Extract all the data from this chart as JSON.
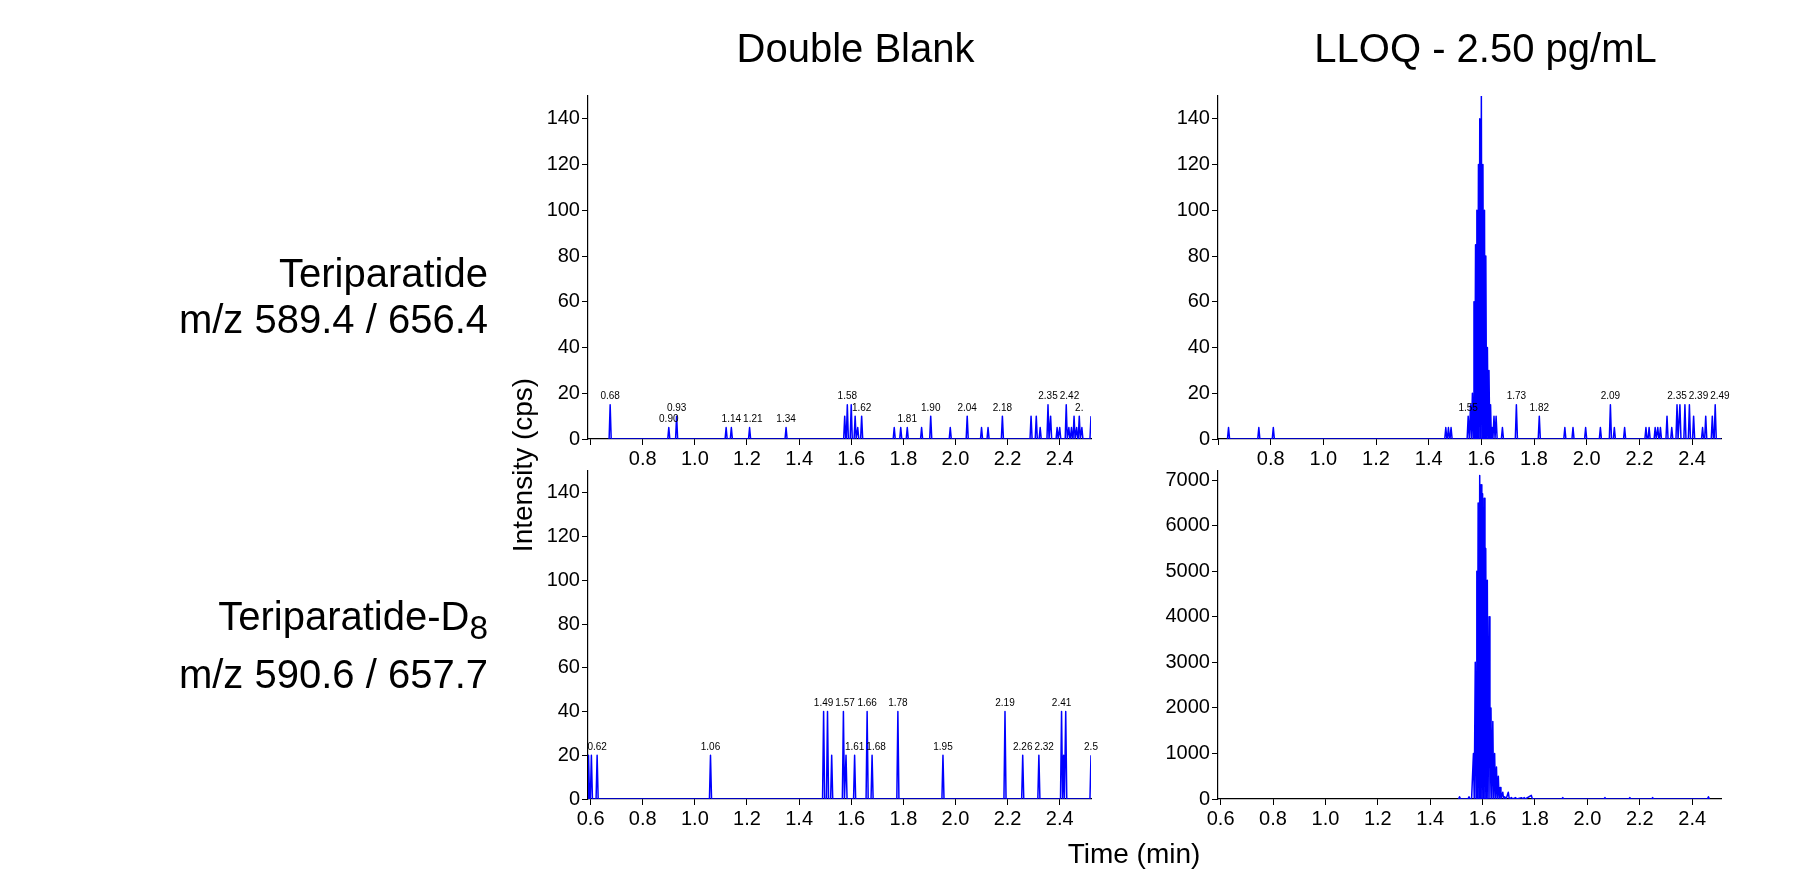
{
  "chart_data": [
    {
      "type": "line",
      "title": "Double Blank",
      "ylabel": "Intensity (cps)",
      "xlim": [
        0.59,
        2.52
      ],
      "ylim": [
        0,
        150
      ],
      "xticks": [
        {
          "value": 0.6,
          "label": null
        },
        0.8,
        {
          "value": 1,
          "label": "1.0"
        },
        1.2,
        1.4,
        1.6,
        1.8,
        {
          "value": 2,
          "label": "2.0"
        },
        2.2,
        2.4
      ],
      "yticks": [
        0,
        20,
        40,
        60,
        80,
        100,
        120,
        140
      ],
      "grid": false,
      "series": [
        {
          "color": "#0000ff",
          "x": [
            0.671,
            0.675,
            0.679,
            0.896,
            0.9,
            0.904,
            0.926,
            0.93,
            0.934,
            1.116,
            1.12,
            1.124,
            1.136,
            1.14,
            1.144,
            1.206,
            1.21,
            1.214,
            1.346,
            1.35,
            1.354,
            1.571,
            1.575,
            1.579,
            1.581,
            1.585,
            1.589,
            1.596,
            1.6,
            1.604,
            1.611,
            1.615,
            1.619,
            1.621,
            1.625,
            1.629,
            1.636,
            1.64,
            1.644,
            1.761,
            1.765,
            1.769,
            1.786,
            1.79,
            1.794,
            1.811,
            1.815,
            1.819,
            1.866,
            1.87,
            1.874,
            1.901,
            1.905,
            1.909,
            1.976,
            1.98,
            1.984,
            2.041,
            2.045,
            2.049,
            2.096,
            2.1,
            2.104,
            2.121,
            2.125,
            2.129,
            2.176,
            2.18,
            2.184,
            2.286,
            2.29,
            2.294,
            2.306,
            2.31,
            2.314,
            2.321,
            2.325,
            2.329,
            2.351,
            2.355,
            2.359,
            2.361,
            2.365,
            2.369,
            2.386,
            2.39,
            2.394,
            2.396,
            2.4,
            2.404,
            2.421,
            2.425,
            2.429,
            2.431,
            2.435,
            2.439,
            2.441,
            2.445,
            2.449,
            2.451,
            2.455,
            2.459,
            2.461,
            2.465,
            2.469,
            2.471,
            2.475,
            2.479,
            2.481,
            2.485,
            2.489,
            2.516,
            2.52
          ],
          "values": [
            0,
            15,
            0,
            0,
            5,
            0,
            0,
            10,
            0,
            0,
            5,
            0,
            0,
            5,
            0,
            0,
            5,
            0,
            0,
            5,
            0,
            0,
            10,
            0,
            0,
            15,
            0,
            0,
            15,
            0,
            0,
            10,
            0,
            0,
            5,
            0,
            0,
            10,
            0,
            0,
            5,
            0,
            0,
            5,
            0,
            0,
            5,
            0,
            0,
            5,
            0,
            0,
            10,
            0,
            0,
            5,
            0,
            0,
            10,
            0,
            0,
            5,
            0,
            0,
            5,
            0,
            0,
            10,
            0,
            0,
            10,
            0,
            0,
            10,
            0,
            0,
            5,
            0,
            0,
            15,
            0,
            0,
            10,
            0,
            0,
            5,
            0,
            0,
            5,
            0,
            0,
            15,
            0,
            0,
            5,
            0,
            0,
            5,
            0,
            0,
            10,
            0,
            0,
            5,
            0,
            0,
            10,
            0,
            0,
            5,
            0,
            0,
            10
          ]
        }
      ],
      "annotations": [
        "Teriparatide\nm/z 589.4 / 656.4",
        {
          "text": "0.68",
          "x": 0.675,
          "y": 15
        },
        {
          "text": "0.90",
          "x": 0.9,
          "y": 5
        },
        {
          "text": "0.93",
          "x": 0.93,
          "y": 10
        },
        {
          "text": "1.14",
          "x": 1.14,
          "y": 5
        },
        {
          "text": "1.21",
          "x": 1.21,
          "y": 5
        },
        {
          "text": "1.34",
          "x": 1.35,
          "y": 5
        },
        {
          "text": "1.58",
          "x": 1.585,
          "y": 15
        },
        {
          "text": "1.62",
          "x": 1.64,
          "y": 10
        },
        {
          "text": "1.81",
          "x": 1.815,
          "y": 5
        },
        {
          "text": "1.90",
          "x": 1.905,
          "y": 10
        },
        {
          "text": "2.04",
          "x": 2.045,
          "y": 10
        },
        {
          "text": "2.18",
          "x": 2.18,
          "y": 10
        },
        {
          "text": "2.35",
          "x": 2.355,
          "y": 15
        },
        {
          "text": "2.42",
          "x": 2.425,
          "y": 15
        },
        {
          "text": "2.",
          "x": 2.475,
          "y": 10
        }
      ]
    },
    {
      "type": "line",
      "title": "LLOQ - 2.50 pg/mL",
      "xlim": [
        0.6,
        2.51
      ],
      "ylim": [
        0,
        150
      ],
      "xticks": [
        {
          "value": 0.6,
          "label": null
        },
        0.8,
        {
          "value": 1,
          "label": "1.0"
        },
        1.2,
        1.4,
        1.6,
        1.8,
        {
          "value": 2,
          "label": "2.0"
        },
        2.2,
        2.4
      ],
      "yticks": [
        0,
        20,
        40,
        60,
        80,
        100,
        120,
        140
      ],
      "grid": false,
      "series": [
        {
          "color": "#0000ff",
          "x": [
            0.636,
            0.64,
            0.644,
            0.751,
            0.755,
            0.759,
            0.806,
            0.81,
            0.814,
            1.461,
            1.465,
            1.469,
            1.471,
            1.475,
            1.479,
            1.481,
            1.485,
            1.489,
            1.546,
            1.55,
            1.554,
            1.559,
            1.562,
            1.566,
            1.569,
            1.572,
            1.575,
            1.578,
            1.58,
            1.583,
            1.586,
            1.589,
            1.591,
            1.594,
            1.597,
            1.6,
            1.603,
            1.606,
            1.609,
            1.612,
            1.614,
            1.617,
            1.62,
            1.623,
            1.626,
            1.629,
            1.632,
            1.635,
            1.638,
            1.641,
            1.644,
            1.648,
            1.652,
            1.656,
            1.66,
            1.676,
            1.68,
            1.684,
            1.729,
            1.733,
            1.737,
            1.816,
            1.82,
            1.824,
            1.913,
            1.917,
            1.921,
            1.944,
            1.948,
            1.952,
            1.992,
            1.996,
            2.0,
            2.048,
            2.052,
            2.056,
            2.086,
            2.09,
            2.094,
            2.101,
            2.105,
            2.109,
            2.14,
            2.144,
            2.148,
            2.221,
            2.225,
            2.229,
            2.233,
            2.237,
            2.241,
            2.256,
            2.26,
            2.264,
            2.266,
            2.27,
            2.274,
            2.276,
            2.28,
            2.284,
            2.301,
            2.305,
            2.309,
            2.319,
            2.323,
            2.327,
            2.339,
            2.343,
            2.347,
            2.35,
            2.354,
            2.358,
            2.369,
            2.373,
            2.377,
            2.386,
            2.39,
            2.394,
            2.402,
            2.406,
            2.41,
            2.436,
            2.44,
            2.444,
            2.448,
            2.452,
            2.456,
            2.473,
            2.477,
            2.481,
            2.484,
            2.488,
            2.492,
            2.51
          ],
          "values": [
            0,
            5,
            0,
            0,
            5,
            0,
            0,
            5,
            0,
            0,
            5,
            0,
            0,
            5,
            0,
            0,
            5,
            0,
            0,
            10,
            0,
            15,
            0,
            20,
            0,
            60,
            0,
            85,
            0,
            100,
            0,
            120,
            0,
            140,
            0,
            150,
            0,
            120,
            0,
            100,
            0,
            80,
            0,
            40,
            0,
            30,
            0,
            15,
            0,
            5,
            0,
            10,
            0,
            10,
            0,
            0,
            5,
            0,
            0,
            15,
            0,
            0,
            10,
            0,
            0,
            5,
            0,
            0,
            5,
            0,
            0,
            5,
            0,
            0,
            5,
            0,
            0,
            15,
            0,
            0,
            5,
            0,
            0,
            5,
            0,
            0,
            5,
            0,
            0,
            5,
            0,
            0,
            5,
            0,
            0,
            5,
            0,
            0,
            5,
            0,
            0,
            10,
            0,
            0,
            5,
            0,
            0,
            15,
            0,
            0,
            15,
            0,
            0,
            15,
            0,
            0,
            15,
            0,
            0,
            10,
            0,
            0,
            5,
            0,
            0,
            10,
            0,
            0,
            10,
            0,
            0,
            15,
            0,
            0
          ]
        }
      ],
      "annotations": [
        {
          "text": "1.55",
          "x": 1.55,
          "y": 10
        },
        {
          "text": "1.73",
          "x": 1.733,
          "y": 15
        },
        {
          "text": "1.82",
          "x": 1.82,
          "y": 10
        },
        {
          "text": "2.09",
          "x": 2.09,
          "y": 15
        },
        {
          "text": "2.35",
          "x": 2.343,
          "y": 15
        },
        {
          "text": "2.39",
          "x": 2.39,
          "y": 15
        },
        {
          "text": "2.49",
          "x": 2.488,
          "y": 15
        }
      ]
    },
    {
      "type": "line",
      "xlabel": "Time (min)",
      "xlim": [
        0.59,
        2.52
      ],
      "ylim": [
        0,
        150
      ],
      "xticks": [
        0.6,
        0.8,
        {
          "value": 1,
          "label": "1.0"
        },
        1.2,
        1.4,
        1.6,
        1.8,
        {
          "value": 2,
          "label": "2.0"
        },
        2.2,
        2.4
      ],
      "yticks": [
        0,
        20,
        40,
        60,
        80,
        100,
        120,
        140
      ],
      "grid": false,
      "series": [
        {
          "color": "#0000ff",
          "x": [
            0.59,
            0.592,
            0.596,
            0.599,
            0.603,
            0.607,
            0.621,
            0.625,
            0.629,
            1.056,
            1.06,
            1.064,
            1.49,
            1.494,
            1.498,
            1.505,
            1.509,
            1.513,
            1.521,
            1.525,
            1.529,
            1.566,
            1.57,
            1.574,
            1.576,
            1.58,
            1.584,
            1.609,
            1.613,
            1.617,
            1.657,
            1.661,
            1.665,
            1.676,
            1.68,
            1.684,
            1.775,
            1.779,
            1.783,
            1.948,
            1.952,
            1.956,
            2.186,
            2.19,
            2.194,
            2.254,
            2.258,
            2.262,
            2.316,
            2.32,
            2.324,
            2.403,
            2.407,
            2.411,
            2.412,
            2.415,
            2.418,
            2.419,
            2.423,
            2.427,
            2.516,
            2.52
          ],
          "values": [
            0,
            20,
            0,
            0,
            20,
            0,
            0,
            20,
            0,
            0,
            20,
            0,
            0,
            40,
            0,
            0,
            40,
            0,
            0,
            20,
            0,
            0,
            40,
            0,
            0,
            20,
            0,
            0,
            20,
            0,
            0,
            40,
            0,
            0,
            20,
            0,
            0,
            40,
            0,
            0,
            20,
            0,
            0,
            40,
            0,
            0,
            20,
            0,
            0,
            20,
            0,
            0,
            40,
            0,
            0,
            20,
            0,
            0,
            40,
            0,
            0,
            20
          ]
        }
      ],
      "annotations": [
        "Teriparatide-D$_{8}$\nm/z 590.6 / 657.7",
        {
          "text": "0.62",
          "x": 0.625,
          "y": 20
        },
        {
          "text": "1.06",
          "x": 1.06,
          "y": 20
        },
        {
          "text": "1.49",
          "x": 1.494,
          "y": 40
        },
        {
          "text": "1.57",
          "x": 1.57,
          "y": 40
        },
        {
          "text": "1.66",
          "x": 1.661,
          "y": 40
        },
        {
          "text": "1.78",
          "x": 1.779,
          "y": 40
        },
        {
          "text": "1.61",
          "x": 1.613,
          "y": 20
        },
        {
          "text": "1.68",
          "x": 1.68,
          "y": 20
        },
        {
          "text": "1.95",
          "x": 1.952,
          "y": 20
        },
        {
          "text": "2.19",
          "x": 2.19,
          "y": 40
        },
        {
          "text": "2.26",
          "x": 2.258,
          "y": 20
        },
        {
          "text": "2.32",
          "x": 2.32,
          "y": 20
        },
        {
          "text": "2.41",
          "x": 2.407,
          "y": 40
        },
        {
          "text": "2.5",
          "x": 2.52,
          "y": 20
        }
      ]
    },
    {
      "type": "line",
      "xlim": [
        0.59,
        2.51
      ],
      "ylim": [
        0,
        7200
      ],
      "xticks": [
        0.6,
        0.8,
        {
          "value": 1,
          "label": "1.0"
        },
        1.2,
        1.4,
        1.6,
        1.8,
        {
          "value": 2,
          "label": "2.0"
        },
        2.2,
        2.4
      ],
      "yticks": [
        0,
        1000,
        2000,
        3000,
        4000,
        5000,
        6000,
        7000
      ],
      "grid": false,
      "series": [
        {
          "color": "#0000ff",
          "x": [
            1.508,
            1.512,
            1.516,
            1.544,
            1.548,
            1.552,
            1.558,
            1.565,
            1.568,
            1.572,
            1.575,
            1.578,
            1.58,
            1.583,
            1.586,
            1.589,
            1.591,
            1.594,
            1.597,
            1.6,
            1.603,
            1.606,
            1.609,
            1.612,
            1.615,
            1.618,
            1.621,
            1.625,
            1.628,
            1.632,
            1.635,
            1.639,
            1.642,
            1.646,
            1.649,
            1.653,
            1.656,
            1.66,
            1.663,
            1.667,
            1.67,
            1.677,
            1.68,
            1.684,
            1.69,
            1.698,
            1.702,
            1.71,
            1.715,
            1.726,
            1.73,
            1.749,
            1.753,
            1.759,
            1.763,
            1.786,
            1.79,
            1.902,
            1.906,
            1.91,
            2.063,
            2.067,
            2.071,
            2.158,
            2.162,
            2.166,
            2.245,
            2.249,
            2.253,
            2.458,
            2.462,
            2.466
          ],
          "values": [
            0,
            50,
            0,
            0,
            50,
            0,
            0,
            1000,
            0,
            3000,
            0,
            5000,
            0,
            6500,
            0,
            7100,
            0,
            6900,
            0,
            6700,
            0,
            6600,
            0,
            5500,
            0,
            4800,
            0,
            4000,
            0,
            2000,
            0,
            1700,
            0,
            1000,
            0,
            700,
            0,
            500,
            0,
            250,
            0,
            150,
            0,
            50,
            0,
            150,
            0,
            30,
            0,
            30,
            0,
            30,
            0,
            30,
            0,
            80,
            0,
            0,
            30,
            0,
            0,
            30,
            0,
            0,
            30,
            0,
            0,
            30,
            0,
            0,
            50,
            0
          ]
        }
      ]
    }
  ]
}
